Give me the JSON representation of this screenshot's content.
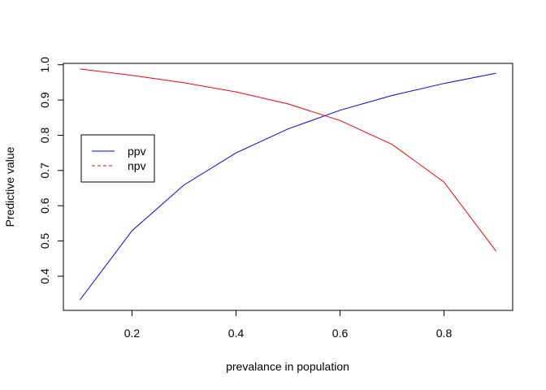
{
  "chart_data": {
    "type": "line",
    "title": "",
    "xlabel": "prevalance in population",
    "ylabel": "Predictive value",
    "xlim": [
      0.068,
      0.932
    ],
    "ylim": [
      0.303,
      1.004
    ],
    "x_ticks": [
      "0.2",
      "0.4",
      "0.6",
      "0.8"
    ],
    "y_ticks": [
      "0.4",
      "0.5",
      "0.6",
      "0.7",
      "0.8",
      "0.9",
      "1.0"
    ],
    "grid": false,
    "legend_position": "left",
    "x": [
      0.1,
      0.2,
      0.3,
      0.4,
      0.5,
      0.6,
      0.7,
      0.8,
      0.9
    ],
    "series": [
      {
        "name": "ppv",
        "color": "#0000ff",
        "line_style": "solid",
        "values": [
          0.333,
          0.529,
          0.659,
          0.75,
          0.818,
          0.871,
          0.913,
          0.947,
          0.976
        ]
      },
      {
        "name": "npv",
        "color": "#ff0000",
        "line_style": "solid",
        "legend_line_style": "dashed",
        "values": [
          0.988,
          0.97,
          0.949,
          0.923,
          0.889,
          0.842,
          0.774,
          0.667,
          0.471
        ]
      }
    ]
  }
}
